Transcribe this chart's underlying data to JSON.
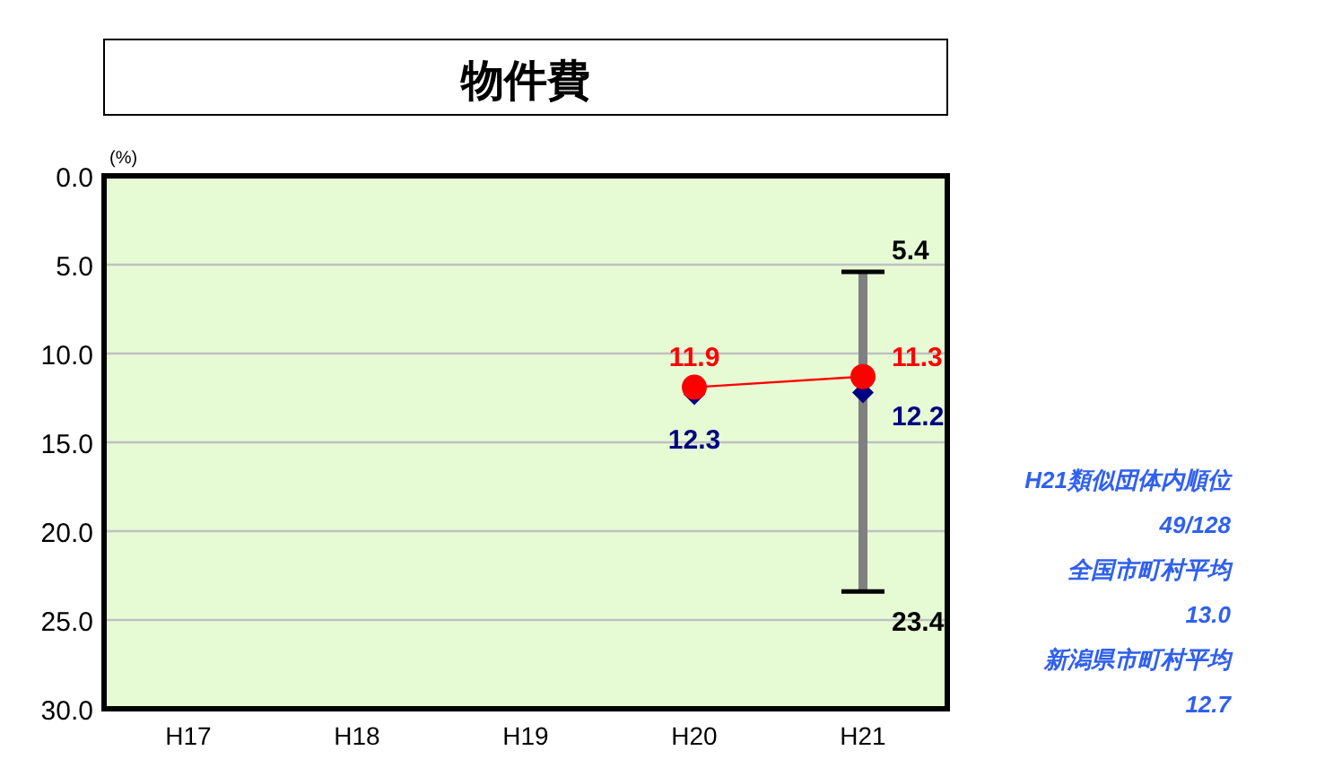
{
  "chart_data": {
    "type": "line",
    "title": "物件費",
    "ylabel": "(%)",
    "categories": [
      "H17",
      "H18",
      "H19",
      "H20",
      "H21"
    ],
    "ylim": [
      30,
      0
    ],
    "yticks": [
      {
        "value": 0,
        "label": "0.0"
      },
      {
        "value": 5,
        "label": "5.0"
      },
      {
        "value": 10,
        "label": "10.0"
      },
      {
        "value": 15,
        "label": "15.0"
      },
      {
        "value": 20,
        "label": "20.0"
      },
      {
        "value": 25,
        "label": "25.0"
      },
      {
        "value": 30,
        "label": "30.0"
      }
    ],
    "grid": "y",
    "series": [
      {
        "type": "bar",
        "color": "#808080",
        "base": [
          null,
          null,
          null,
          null,
          5.4
        ],
        "values": [
          null,
          null,
          null,
          null,
          18.0
        ]
      },
      {
        "type": "scatter",
        "color": "#000080",
        "marker": "diamond",
        "values": [
          null,
          null,
          null,
          12.3,
          12.2
        ],
        "value_labels": [
          null,
          null,
          null,
          "12.3",
          "12.2"
        ]
      },
      {
        "color": "#ff0000",
        "marker": "circle",
        "line_style": "solid",
        "values": [
          null,
          null,
          null,
          11.9,
          11.3
        ],
        "value_labels": [
          null,
          null,
          null,
          "11.9",
          "11.3"
        ]
      }
    ],
    "annotations": [
      {
        "text": "5.4",
        "x": "H21",
        "y": 5.4
      },
      {
        "text": "23.4",
        "x": "H21",
        "y": 23.4
      },
      "H21類似団体内順位",
      "49/128",
      "全国市町村平均",
      "13.0",
      "新潟県市町村平均",
      "12.7"
    ]
  }
}
